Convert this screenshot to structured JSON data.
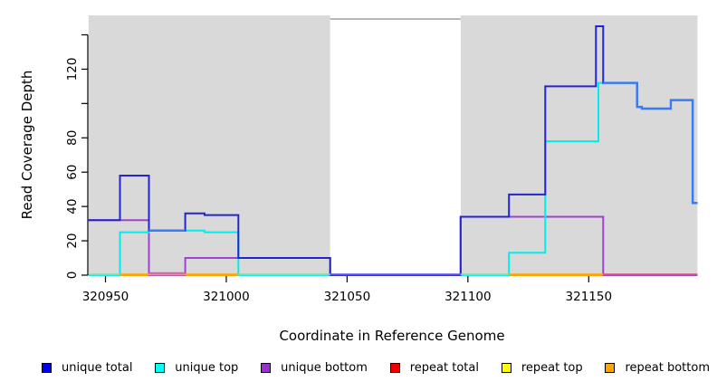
{
  "figure": {
    "ylabel": "Read Coverage Depth",
    "xlabel": "Coordinate in Reference Genome"
  },
  "axes": {
    "y_ticks": [
      {
        "value": 0,
        "label": "0"
      },
      {
        "value": 20,
        "label": "20"
      },
      {
        "value": 40,
        "label": "40"
      },
      {
        "value": 60,
        "label": "60"
      },
      {
        "value": 80,
        "label": "80"
      },
      {
        "value": 100,
        "label": ""
      },
      {
        "value": 120,
        "label": "120"
      },
      {
        "value": 140,
        "label": ""
      }
    ],
    "x_ticks": [
      {
        "value": 320950,
        "label": "320950"
      },
      {
        "value": 321000,
        "label": "321000"
      },
      {
        "value": 321050,
        "label": "321050"
      },
      {
        "value": 321100,
        "label": "321100"
      },
      {
        "value": 321150,
        "label": "321150"
      }
    ]
  },
  "chart_data": {
    "type": "line",
    "subtype": "step",
    "title": "",
    "xlabel": "Coordinate in Reference Genome",
    "ylabel": "Read Coverage Depth",
    "x_range": [
      320943,
      321195
    ],
    "y_range": [
      0,
      151
    ],
    "grid": false,
    "legend_position": "bottom",
    "shaded_regions": [
      {
        "x0": 320943,
        "x1": 321043,
        "color": "#D9D9D9"
      },
      {
        "x0": 321097,
        "x1": 321195,
        "color": "#D9D9D9"
      }
    ],
    "gap_region": {
      "x0": 321043,
      "x1": 321097,
      "color": "#FFFFFF",
      "border": "#8C8C8C"
    },
    "series": [
      {
        "name": "repeat-total",
        "label": "repeat total",
        "color": "#EE0000",
        "points": [
          [
            320943,
            0
          ]
        ]
      },
      {
        "name": "repeat-top",
        "label": "repeat top",
        "color": "#FFFF00",
        "points": [
          [
            320943,
            0
          ]
        ]
      },
      {
        "name": "repeat-bottom",
        "label": "repeat bottom",
        "color": "#FFA500",
        "points": [
          [
            320943,
            0
          ]
        ]
      },
      {
        "name": "unique-bottom",
        "label": "unique bottom",
        "color": "#9D44CF",
        "points": [
          [
            320943,
            32
          ],
          [
            320968,
            0
          ],
          [
            320983,
            10
          ],
          [
            321043,
            0
          ],
          [
            321097,
            34
          ],
          [
            321156,
            0
          ]
        ]
      },
      {
        "name": "unique-top",
        "label": "unique top",
        "color": "#00EDED",
        "points": [
          [
            320943,
            0
          ],
          [
            320956,
            25
          ],
          [
            320968,
            26
          ],
          [
            320991,
            25
          ],
          [
            321005,
            0
          ],
          [
            321117,
            13
          ],
          [
            321132,
            78
          ],
          [
            321154,
            112
          ],
          [
            321170,
            98
          ],
          [
            321172,
            97
          ],
          [
            321184,
            102
          ],
          [
            321193,
            42
          ]
        ]
      },
      {
        "name": "unique-total",
        "label": "unique total",
        "color": "#2424CE",
        "points": [
          [
            320943,
            32
          ],
          [
            320956,
            58
          ],
          [
            320968,
            26
          ],
          [
            320983,
            36
          ],
          [
            320991,
            35
          ],
          [
            321005,
            10
          ],
          [
            321043,
            0
          ],
          [
            321097,
            34
          ],
          [
            321117,
            47
          ],
          [
            321132,
            110
          ],
          [
            321153,
            145
          ],
          [
            321156,
            112
          ],
          [
            321170,
            98
          ],
          [
            321172,
            97
          ],
          [
            321184,
            102
          ],
          [
            321193,
            42
          ]
        ]
      }
    ],
    "total_equals_top_ranges": [
      [
        320968,
        320983
      ],
      [
        321156,
        321195
      ]
    ],
    "total_over_top_color": "#3B7AF5",
    "baseline_overlap_segments": [
      {
        "x0": 320943,
        "x1": 320956,
        "color": "#8CD7A6",
        "dy": 0
      },
      {
        "x0": 320956,
        "x1": 321005,
        "color": "#FFA500",
        "dy": 0
      },
      {
        "x0": 320968,
        "x1": 320983,
        "color": "#CE5FD0",
        "dy": -1.4
      },
      {
        "x0": 321005,
        "x1": 321043,
        "color": "#8CD7A6",
        "dy": 0
      },
      {
        "x0": 321043,
        "x1": 321097,
        "color": "#5B50E8",
        "dy": 0
      },
      {
        "x0": 321097,
        "x1": 321117,
        "color": "#8CD7A6",
        "dy": 0
      },
      {
        "x0": 321117,
        "x1": 321156,
        "color": "#FFA500",
        "dy": 0
      },
      {
        "x0": 321156,
        "x1": 321195,
        "color": "#D84C82",
        "dy": 0
      }
    ]
  },
  "legend": {
    "items": [
      {
        "label": "unique total",
        "color": "#0000EE"
      },
      {
        "label": "unique top",
        "color": "#00FFFF"
      },
      {
        "label": "unique bottom",
        "color": "#9932CC"
      },
      {
        "label": "repeat total",
        "color": "#EE0000"
      },
      {
        "label": "repeat top",
        "color": "#FFFF00"
      },
      {
        "label": "repeat bottom",
        "color": "#FFA500"
      }
    ]
  }
}
